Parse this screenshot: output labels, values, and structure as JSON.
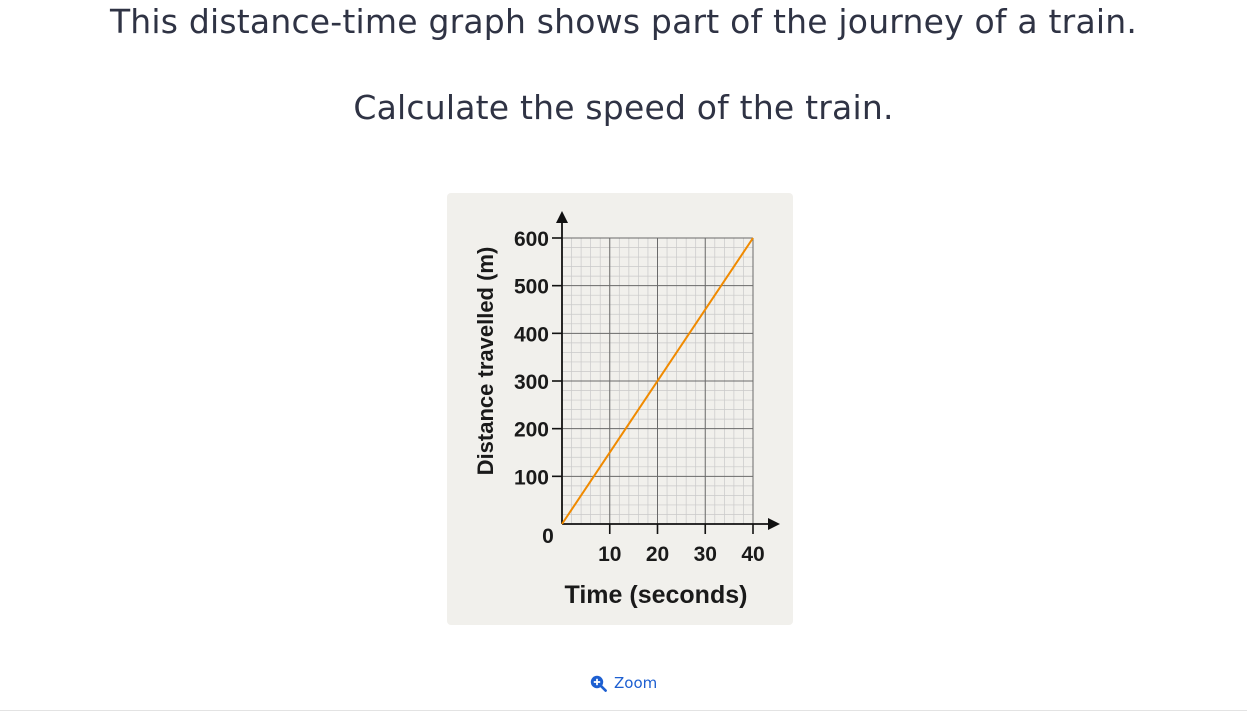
{
  "question": {
    "line1": "This distance-time graph shows part of the journey of a train.",
    "line2": "Calculate the speed of the train."
  },
  "zoom": {
    "label": "Zoom",
    "icon": "zoom-in-icon",
    "color": "#1d5fd1"
  },
  "chart_data": {
    "type": "line",
    "title": "",
    "xlabel": "Time (seconds)",
    "ylabel": "Distance travelled (m)",
    "xlim": [
      0,
      40
    ],
    "ylim": [
      0,
      600
    ],
    "x_ticks": [
      10,
      20,
      30,
      40
    ],
    "y_ticks": [
      100,
      200,
      300,
      400,
      500,
      600
    ],
    "origin_label": "0",
    "grid": true,
    "series": [
      {
        "color": "#f08a00",
        "x": [
          0,
          40
        ],
        "y": [
          0,
          600
        ]
      }
    ]
  }
}
